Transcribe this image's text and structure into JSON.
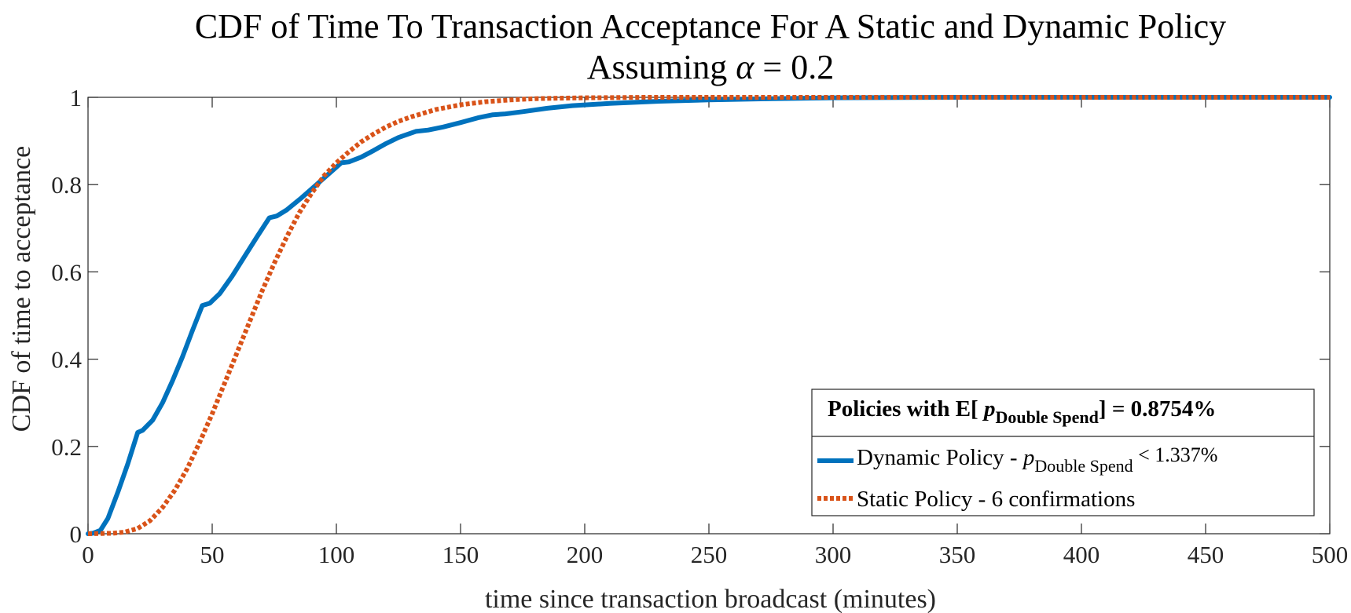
{
  "chart_data": {
    "type": "line",
    "title": {
      "line1": "CDF of Time To Transaction Acceptance For A Static and Dynamic Policy",
      "line2_prefix": "Assuming ",
      "line2_symbol": "α",
      "line2_suffix": " = 0.2"
    },
    "xlabel": "time since transaction broadcast (minutes)",
    "ylabel": "CDF of time to acceptance",
    "xlim": [
      0,
      500
    ],
    "ylim": [
      0,
      1
    ],
    "xticks": [
      0,
      50,
      100,
      150,
      200,
      250,
      300,
      350,
      400,
      450,
      500
    ],
    "xtick_labels": [
      "0",
      "50",
      "100",
      "150",
      "200",
      "250",
      "300",
      "350",
      "400",
      "450",
      "500"
    ],
    "yticks": [
      0,
      0.2,
      0.4,
      0.6,
      0.8,
      1
    ],
    "ytick_labels": [
      "0",
      "0.2",
      "0.4",
      "0.6",
      "0.8",
      "1"
    ],
    "grid": false,
    "legend": {
      "placement": "bottom-right",
      "title_prefix": "Policies with E[ ",
      "title_p": "p",
      "title_sub": "Double Spend",
      "title_suffix": "]  = 0.8754%",
      "entry1_prefix": "Dynamic Policy -  ",
      "entry1_p": "p",
      "entry1_sub": "Double Spend",
      "entry1_suffix": " < 1.337%",
      "entry2": "Static Policy - 6 confirmations"
    },
    "series": [
      {
        "name": "Dynamic Policy",
        "color": "#0072BD",
        "style": "solid",
        "x": [
          0,
          2,
          5,
          8,
          12,
          16,
          20,
          22,
          26,
          30,
          34,
          38,
          42,
          46,
          49,
          53,
          58,
          63,
          68,
          73,
          76,
          80,
          86,
          92,
          98,
          102,
          105,
          110,
          115,
          120,
          125,
          132,
          137,
          143,
          150,
          157,
          163,
          168,
          175,
          185,
          195,
          210,
          230,
          250,
          275,
          300,
          350,
          400,
          450,
          500
        ],
        "y": [
          0,
          0.001,
          0.008,
          0.035,
          0.095,
          0.16,
          0.232,
          0.237,
          0.26,
          0.3,
          0.35,
          0.405,
          0.465,
          0.523,
          0.528,
          0.55,
          0.59,
          0.635,
          0.68,
          0.724,
          0.728,
          0.742,
          0.77,
          0.8,
          0.83,
          0.85,
          0.852,
          0.863,
          0.878,
          0.894,
          0.908,
          0.922,
          0.925,
          0.932,
          0.942,
          0.953,
          0.96,
          0.962,
          0.967,
          0.975,
          0.981,
          0.986,
          0.991,
          0.994,
          0.997,
          0.999,
          1,
          1,
          1,
          1
        ]
      },
      {
        "name": "Static Policy",
        "color": "#D95319",
        "style": "dotted",
        "x": [
          0,
          10,
          15,
          20,
          25,
          30,
          35,
          40,
          45,
          50,
          55,
          60,
          65,
          70,
          75,
          80,
          85,
          90,
          95,
          100,
          105,
          110,
          115,
          120,
          125,
          130,
          140,
          150,
          160,
          170,
          180,
          190,
          200,
          225,
          250,
          300,
          350,
          400,
          450,
          500
        ],
        "y": [
          0,
          0.001,
          0.004,
          0.012,
          0.03,
          0.06,
          0.1,
          0.15,
          0.21,
          0.275,
          0.345,
          0.415,
          0.485,
          0.555,
          0.62,
          0.68,
          0.735,
          0.78,
          0.82,
          0.85,
          0.875,
          0.898,
          0.916,
          0.932,
          0.945,
          0.955,
          0.972,
          0.983,
          0.99,
          0.994,
          0.997,
          0.998,
          0.999,
          1,
          1,
          1,
          1,
          1,
          1,
          1
        ]
      }
    ]
  }
}
